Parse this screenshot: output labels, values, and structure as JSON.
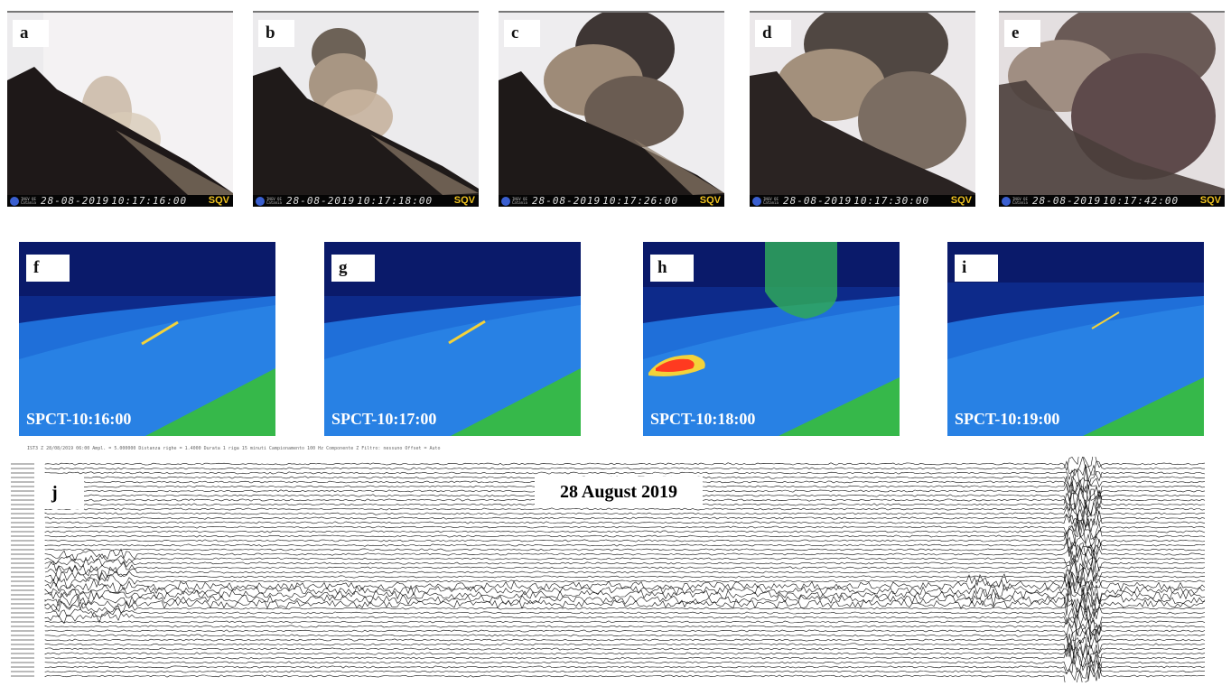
{
  "visible_frames": [
    {
      "label": "a",
      "date": "28-08-2019",
      "time": "10:17:16:00",
      "station": "SQV",
      "logo_text": "INGV OE Catania"
    },
    {
      "label": "b",
      "date": "28-08-2019",
      "time": "10:17:18:00",
      "station": "SQV",
      "logo_text": "INGV OE Catania"
    },
    {
      "label": "c",
      "date": "28-08-2019",
      "time": "10:17:26:00",
      "station": "SQV",
      "logo_text": "INGV OE Catania"
    },
    {
      "label": "d",
      "date": "28-08-2019",
      "time": "10:17:30:00",
      "station": "SQV",
      "logo_text": "INGV OE Catania"
    },
    {
      "label": "e",
      "date": "28-08-2019",
      "time": "10:17:42:00",
      "station": "SQV",
      "logo_text": "INGV OE Catania"
    }
  ],
  "thermal_frames": [
    {
      "label": "f",
      "caption": "SPCT-10:16:00"
    },
    {
      "label": "g",
      "caption": "SPCT-10:17:00"
    },
    {
      "label": "h",
      "caption": "SPCT-10:18:00"
    },
    {
      "label": "i",
      "caption": "SPCT-10:19:00"
    }
  ],
  "seismogram": {
    "label": "j",
    "title": "28 August 2019",
    "header_text": "IST3 Z 28/08/2019 06:00  Ampl. = 5.000000  Distanza righe = 1.4000  Durata 1 riga 15 minuti  Campionamento 100 Hz  Componente Z  Filtro: nessuno  Offset = Auto"
  },
  "colors": {
    "thermal_dark": "#0a1a6a",
    "thermal_mid": "#1f6fd9",
    "thermal_green": "#36b84a",
    "thermal_hot": "#ff3a20",
    "timestamp_station": "#f0c320"
  }
}
